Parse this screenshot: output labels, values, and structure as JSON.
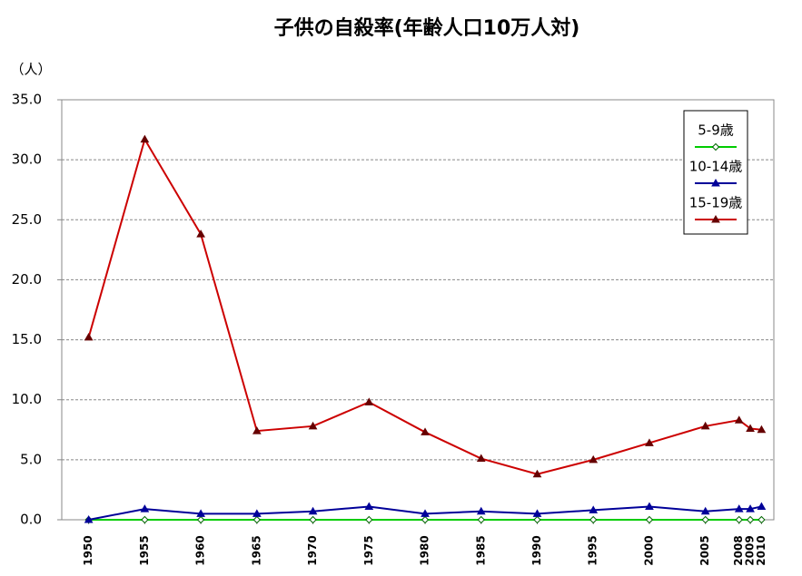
{
  "chart_data": {
    "type": "line",
    "title": "子供の自殺率(年齢人口10万人対)",
    "y_unit": "（人）",
    "x": [
      1950,
      1955,
      1960,
      1965,
      1970,
      1975,
      1980,
      1985,
      1990,
      1995,
      2000,
      2005,
      2008,
      2009,
      2010
    ],
    "xlim": [
      1947.6,
      2011.1
    ],
    "xticks": [
      1950,
      1955,
      1960,
      1965,
      1970,
      1975,
      1980,
      1985,
      1990,
      1995,
      2000,
      2005,
      2008,
      2009,
      2010
    ],
    "ylim": [
      0,
      35
    ],
    "yticks": [
      {
        "value": 0,
        "label": "0.0"
      },
      {
        "value": 5,
        "label": "5.0"
      },
      {
        "value": 10,
        "label": "10.0"
      },
      {
        "value": 15,
        "label": "15.0"
      },
      {
        "value": 20,
        "label": "20.0"
      },
      {
        "value": 25,
        "label": "25.0"
      },
      {
        "value": 30,
        "label": "30.0"
      },
      {
        "value": 35,
        "label": "35.0"
      }
    ],
    "grid": true,
    "legend": "top-right",
    "series": [
      {
        "name": "5-9歳",
        "color": "#00cc00",
        "marker": "diamond",
        "values": [
          0,
          0,
          0,
          0,
          0,
          0,
          0,
          0,
          0,
          0,
          0,
          0,
          0,
          0,
          0
        ]
      },
      {
        "name": "10-14歳",
        "color": "#000099",
        "marker": "triangle",
        "values": [
          0,
          0.9,
          0.5,
          0.5,
          0.7,
          1.1,
          0.5,
          0.7,
          0.5,
          0.8,
          1.1,
          0.7,
          0.9,
          0.9,
          1.1
        ]
      },
      {
        "name": "15-19歳",
        "color": "#cc0000",
        "marker": "triangle",
        "values": [
          15.2,
          31.7,
          23.8,
          7.4,
          7.8,
          9.8,
          7.3,
          5.1,
          3.8,
          5.0,
          6.4,
          7.8,
          8.3,
          7.6,
          7.5
        ]
      }
    ]
  }
}
